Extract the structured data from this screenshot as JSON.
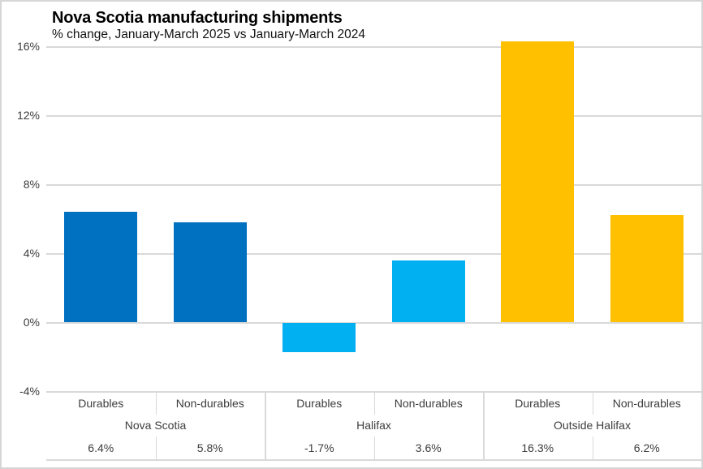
{
  "chart_data": {
    "type": "bar",
    "title": "Nova Scotia manufacturing shipments",
    "subtitle": "% change, January-March 2025 vs January-March 2024",
    "ylabel": "",
    "xlabel": "",
    "ylim": [
      -4,
      16.5
    ],
    "grid": true,
    "legend_position": "none",
    "yticks": [
      {
        "value": 16,
        "label": "16%"
      },
      {
        "value": 12,
        "label": "12%"
      },
      {
        "value": 8,
        "label": "8%"
      },
      {
        "value": 4,
        "label": "4%"
      },
      {
        "value": 0,
        "label": "0%"
      },
      {
        "value": -4,
        "label": "-4%"
      }
    ],
    "categories": [
      "Durables",
      "Non-durables",
      "Durables",
      "Non-durables",
      "Durables",
      "Non-durables"
    ],
    "groups": [
      {
        "name": "Nova Scotia",
        "color": "#0070C0",
        "bars": [
          {
            "category": "Durables",
            "value": 6.4,
            "label": "6.4%"
          },
          {
            "category": "Non-durables",
            "value": 5.8,
            "label": "5.8%"
          }
        ]
      },
      {
        "name": "Halifax",
        "color": "#00B0F0",
        "bars": [
          {
            "category": "Durables",
            "value": -1.7,
            "label": "-1.7%"
          },
          {
            "category": "Non-durables",
            "value": 3.6,
            "label": "3.6%"
          }
        ]
      },
      {
        "name": "Outside Halifax",
        "color": "#FFC000",
        "bars": [
          {
            "category": "Durables",
            "value": 16.3,
            "label": "16.3%"
          },
          {
            "category": "Non-durables",
            "value": 6.2,
            "label": "6.2%"
          }
        ]
      }
    ]
  },
  "colors": {
    "gridline": "#D9D9D9",
    "axis_text": "#3D3D3D",
    "canvas_border": "#D6D6D6",
    "background": "#FFFFFF"
  }
}
